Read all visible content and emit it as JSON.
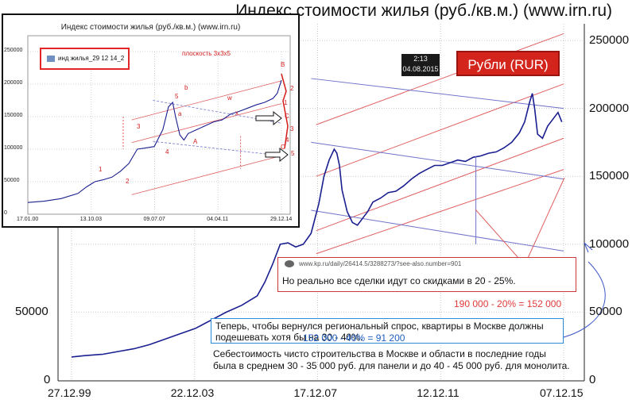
{
  "chart_data": [
    {
      "type": "line",
      "title": "Индекс стоимости жилья (руб./кв.м.) (www.irn.ru)",
      "x_ticks": [
        "27.12.99",
        "22.12.03",
        "17.12.07",
        "12.12.11",
        "07.12.15"
      ],
      "y_ticks": [
        "0",
        "50000",
        "100000",
        "150000",
        "200000",
        "250000"
      ],
      "ylim": [
        0,
        250000
      ],
      "axis_left_ticks": [
        "0",
        "50000"
      ],
      "series": [
        {
          "x": [
            "1999-12-27",
            "2000-06-01",
            "2001-01-01",
            "2001-07-01",
            "2002-01-01",
            "2002-07-01",
            "2003-01-01",
            "2003-07-01",
            "2004-01-01",
            "2004-07-01",
            "2005-01-01",
            "2005-07-01",
            "2006-01-01",
            "2006-04-01",
            "2006-07-01",
            "2006-10-01",
            "2007-01-01",
            "2007-04-01",
            "2007-07-01",
            "2007-10-01",
            "2008-01-01",
            "2008-03-01",
            "2008-05-01",
            "2008-07-01",
            "2008-08-01",
            "2008-09-01",
            "2008-10-01",
            "2008-12-01",
            "2009-02-01",
            "2009-04-01",
            "2009-06-01",
            "2009-08-01",
            "2009-10-01",
            "2010-01-01",
            "2010-04-01",
            "2010-07-01",
            "2010-10-01",
            "2011-01-01",
            "2011-04-01",
            "2011-07-01",
            "2011-10-01",
            "2012-01-01",
            "2012-04-01",
            "2012-07-01",
            "2012-10-01",
            "2013-01-01",
            "2013-04-01",
            "2013-07-01",
            "2013-10-01",
            "2014-01-01",
            "2014-04-01",
            "2014-07-01",
            "2014-09-01",
            "2014-11-01",
            "2014-12-01",
            "2014-12-29",
            "2015-02-01",
            "2015-04-01",
            "2015-06-01",
            "2015-08-01",
            "2015-10-01",
            "2015-11-15"
          ],
          "values": [
            17000,
            18000,
            19000,
            21000,
            23000,
            26000,
            30000,
            34000,
            38000,
            44000,
            50000,
            55000,
            62000,
            72000,
            85000,
            100000,
            101000,
            98000,
            100000,
            108000,
            130000,
            150000,
            162000,
            170000,
            167000,
            158000,
            140000,
            124000,
            116000,
            114000,
            119000,
            124000,
            131000,
            134000,
            138000,
            139000,
            143000,
            148000,
            152000,
            155000,
            158000,
            158000,
            160000,
            162000,
            161000,
            164000,
            165000,
            167000,
            168000,
            171000,
            175000,
            182000,
            190000,
            205000,
            211000,
            200000,
            181000,
            178000,
            187000,
            192000,
            197000,
            190000
          ]
        }
      ],
      "annotations": {
        "timestamp_time": "2:13",
        "timestamp_date": "04.08.2015",
        "currency_button": "Рубли (RUR)",
        "source_url": "www.kp.ru/daily/26414.5/3288273/?see-also.number=901",
        "quote": "Но реально все сделки идут со скидками в 20 - 25%.",
        "calc_20": "190 000 - 20% = 152 000",
        "regional_text": "Теперь, чтобы вернулся региональный спрос, квартиры в Москве должны подешевать хотя бы на 30 - 40%.",
        "calc_40": "152 000 - 40% = 91 200",
        "cost_text": "Себестоимость чисто строительства в Москве и области в последние годы была в среднем 30 - 35 000 руб. для панели и до 40 - 45 000 руб. для монолита."
      }
    },
    {
      "type": "line",
      "title": "Индекс стоимости жилья (руб./кв.м.) (www.irn.ru)",
      "legend": [
        "инд жилья_29 12 14_2"
      ],
      "x_ticks": [
        "17.01.00",
        "13.10.03",
        "09.07.07",
        "04.04.11",
        "29.12.14"
      ],
      "y_ticks": [
        "0",
        "50000",
        "100000",
        "150000",
        "200000",
        "250000"
      ],
      "ylim": [
        0,
        250000
      ],
      "series": [
        {
          "x": [
            "2000-01-17",
            "2001-01-01",
            "2002-01-01",
            "2003-01-01",
            "2003-07-01",
            "2004-01-01",
            "2004-07-01",
            "2005-01-01",
            "2005-07-01",
            "2006-01-01",
            "2006-07-01",
            "2007-01-01",
            "2007-07-01",
            "2008-01-01",
            "2008-05-01",
            "2008-08-01",
            "2008-10-01",
            "2009-01-01",
            "2009-04-01",
            "2009-07-01",
            "2010-01-01",
            "2010-07-01",
            "2011-01-01",
            "2011-07-01",
            "2012-01-01",
            "2012-07-01",
            "2013-01-01",
            "2013-07-01",
            "2014-01-01",
            "2014-07-01",
            "2014-10-01",
            "2014-12-29"
          ],
          "values": [
            18000,
            20000,
            24000,
            32000,
            42000,
            50000,
            53000,
            57000,
            66000,
            78000,
            100000,
            102000,
            104000,
            130000,
            165000,
            172000,
            150000,
            122000,
            114000,
            124000,
            130000,
            136000,
            142000,
            145000,
            154000,
            158000,
            163000,
            168000,
            172000,
            178000,
            186000,
            206000
          ]
        }
      ],
      "wave_labels": [
        "1",
        "2",
        "3",
        "4",
        "5",
        "a",
        "b",
        "A",
        "w",
        "x",
        "B",
        "C",
        "C",
        "1",
        "2",
        "3",
        "4",
        "5"
      ],
      "plane_label": "плоскость 3х3х5"
    }
  ]
}
